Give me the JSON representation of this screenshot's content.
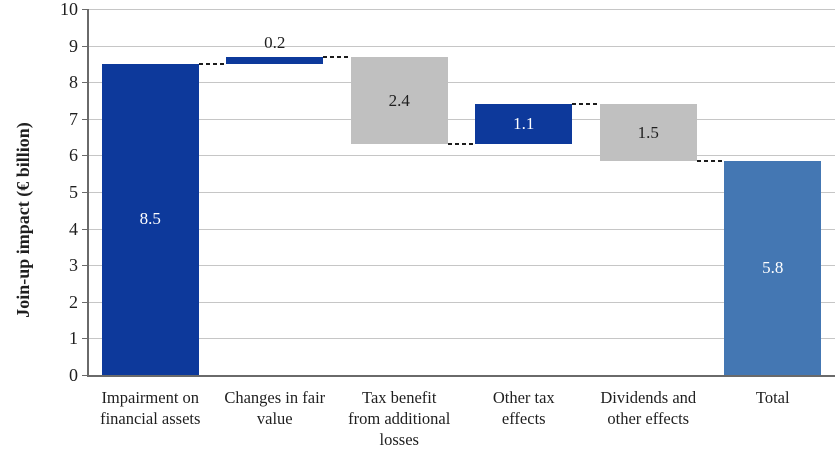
{
  "chart_data": {
    "type": "bar",
    "subtype": "waterfall",
    "title": "",
    "xlabel": "",
    "ylabel": "Join-up impact (€ billion)",
    "ylim": [
      0,
      10
    ],
    "ytick_interval": 1,
    "yticks": [
      0,
      1,
      2,
      3,
      4,
      5,
      6,
      7,
      8,
      9,
      10
    ],
    "grid": true,
    "legend": "none",
    "categories": [
      "Impairment on financial assets",
      "Changes in fair value",
      "Tax benefit from additional losses",
      "Other tax effects",
      "Dividends and other effects",
      "Total"
    ],
    "category_lines": [
      [
        "Impairment on",
        "financial assets"
      ],
      [
        "Changes in fair",
        "value"
      ],
      [
        "Tax benefit",
        "from additional",
        "losses"
      ],
      [
        "Other tax",
        "effects"
      ],
      [
        "Dividends and",
        "other effects"
      ],
      [
        "Total"
      ]
    ],
    "segments": [
      {
        "label": "8.5",
        "value": 8.5,
        "start": 0,
        "end": 8.5,
        "role": "start",
        "color": "dark_blue",
        "label_color": "white",
        "label_placement": "inside"
      },
      {
        "label": "0.2",
        "value": 0.2,
        "start": 8.5,
        "end": 8.7,
        "role": "increase",
        "color": "dark_blue",
        "label_color": "black",
        "label_placement": "above"
      },
      {
        "label": "2.4",
        "value": -2.4,
        "start": 8.7,
        "end": 6.3,
        "role": "decrease",
        "color": "gray",
        "label_color": "black",
        "label_placement": "inside"
      },
      {
        "label": "1.1",
        "value": 1.1,
        "start": 6.3,
        "end": 7.4,
        "role": "increase",
        "color": "dark_blue",
        "label_color": "white",
        "label_placement": "inside"
      },
      {
        "label": "1.5",
        "value": -1.5,
        "start": 7.4,
        "end": 5.85,
        "role": "decrease",
        "color": "gray",
        "label_color": "black",
        "label_placement": "inside"
      },
      {
        "label": "5.8",
        "value": 5.8,
        "start": 0,
        "end": 5.85,
        "role": "total",
        "color": "medium_blue",
        "label_color": "white",
        "label_placement": "inside"
      }
    ],
    "connectors": [
      {
        "level": 8.5,
        "from": 0,
        "to": 1
      },
      {
        "level": 8.7,
        "from": 1,
        "to": 2
      },
      {
        "level": 6.3,
        "from": 2,
        "to": 3
      },
      {
        "level": 7.4,
        "from": 3,
        "to": 4
      },
      {
        "level": 5.85,
        "from": 4,
        "to": 5
      }
    ],
    "colors": {
      "dark_blue": "#0d399b",
      "medium_blue": "#4477b3",
      "gray": "#c0c0c0",
      "gridline": "#c6c6c6",
      "axis": "#6a6a6a",
      "connector": "#1c1c1c",
      "text": "#1f1f1f",
      "background": "#ffffff"
    }
  }
}
